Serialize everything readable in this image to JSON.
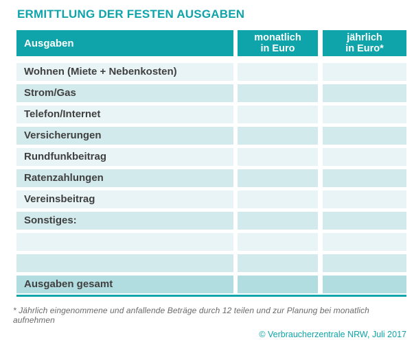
{
  "title": "ERMITTLUNG DER FESTEN AUSGABEN",
  "table": {
    "header": {
      "expenses": "Ausgaben",
      "monthly_line1": "monatlich",
      "monthly_line2": "in Euro",
      "yearly_line1": "jährlich",
      "yearly_line2": "in Euro*"
    },
    "rows": [
      {
        "label": "Wohnen (Miete + Nebenkosten)",
        "monthly": "",
        "yearly": ""
      },
      {
        "label": "Strom/Gas",
        "monthly": "",
        "yearly": ""
      },
      {
        "label": "Telefon/Internet",
        "monthly": "",
        "yearly": ""
      },
      {
        "label": "Versicherungen",
        "monthly": "",
        "yearly": ""
      },
      {
        "label": "Rundfunkbeitrag",
        "monthly": "",
        "yearly": ""
      },
      {
        "label": "Ratenzahlungen",
        "monthly": "",
        "yearly": ""
      },
      {
        "label": "Vereinsbeitrag",
        "monthly": "",
        "yearly": ""
      },
      {
        "label": "Sonstiges:",
        "monthly": "",
        "yearly": ""
      },
      {
        "label": "",
        "monthly": "",
        "yearly": ""
      },
      {
        "label": "",
        "monthly": "",
        "yearly": ""
      }
    ],
    "total": {
      "label": "Ausgaben gesamt",
      "monthly": "",
      "yearly": ""
    }
  },
  "footnote": "* Jährlich eingenommene und anfallende Beträge durch 12 teilen und zur Planung bei monatlich aufnehmen",
  "copyright": "© Verbraucherzentrale NRW, Juli 2017",
  "colors": {
    "teal": "#0ea4aa",
    "row_light": "#e8f4f5",
    "row_dark": "#d3eaec",
    "total_row": "#b2dde0",
    "label_text": "#404040",
    "footnote_text": "#6a6a6a"
  }
}
